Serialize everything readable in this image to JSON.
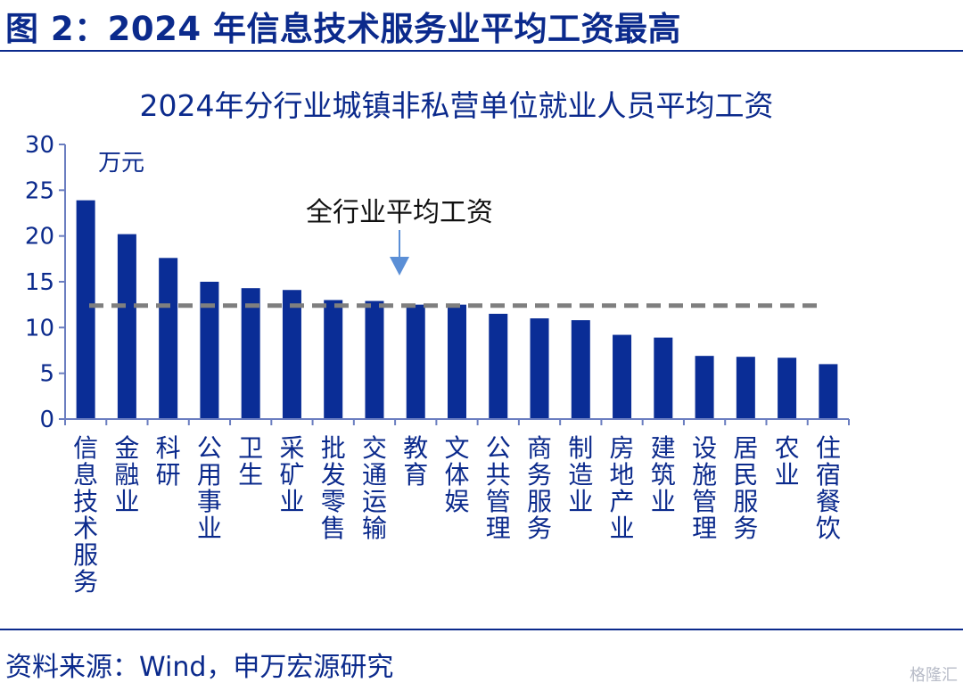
{
  "figure_title": "图 2：2024 年信息技术服务业平均工资最高",
  "source": "资料来源：Wind，申万宏源研究",
  "watermark": "格隆汇",
  "colors": {
    "bar": "#0a2d96",
    "text": "#0b2a8c",
    "axis": "#6b7ec0",
    "average_line": "#7f7f7f"
  },
  "chart_data": {
    "type": "bar",
    "title": "2024年分行业城镇非私营单位就业人员平均工资",
    "unit": "万元",
    "ylim": [
      0,
      30
    ],
    "yticks": [
      0,
      5,
      10,
      15,
      20,
      25,
      30
    ],
    "categories": [
      "信息技术服务",
      "金融业",
      "科研",
      "公用事业",
      "卫生",
      "采矿业",
      "批发零售",
      "交通运输",
      "教育",
      "文体娱",
      "公共管理",
      "商务服务",
      "制造业",
      "房地产业",
      "建筑业",
      "设施管理",
      "居民服务",
      "农业",
      "住宿餐饮"
    ],
    "values": [
      23.9,
      20.2,
      17.6,
      15.0,
      14.3,
      14.1,
      13.0,
      12.9,
      12.5,
      12.5,
      11.5,
      11.0,
      10.8,
      9.2,
      8.9,
      6.9,
      6.8,
      6.7,
      6.0
    ],
    "average": {
      "label": "全行业平均工资",
      "value": 12.4
    },
    "grid": false,
    "legend": "none"
  }
}
